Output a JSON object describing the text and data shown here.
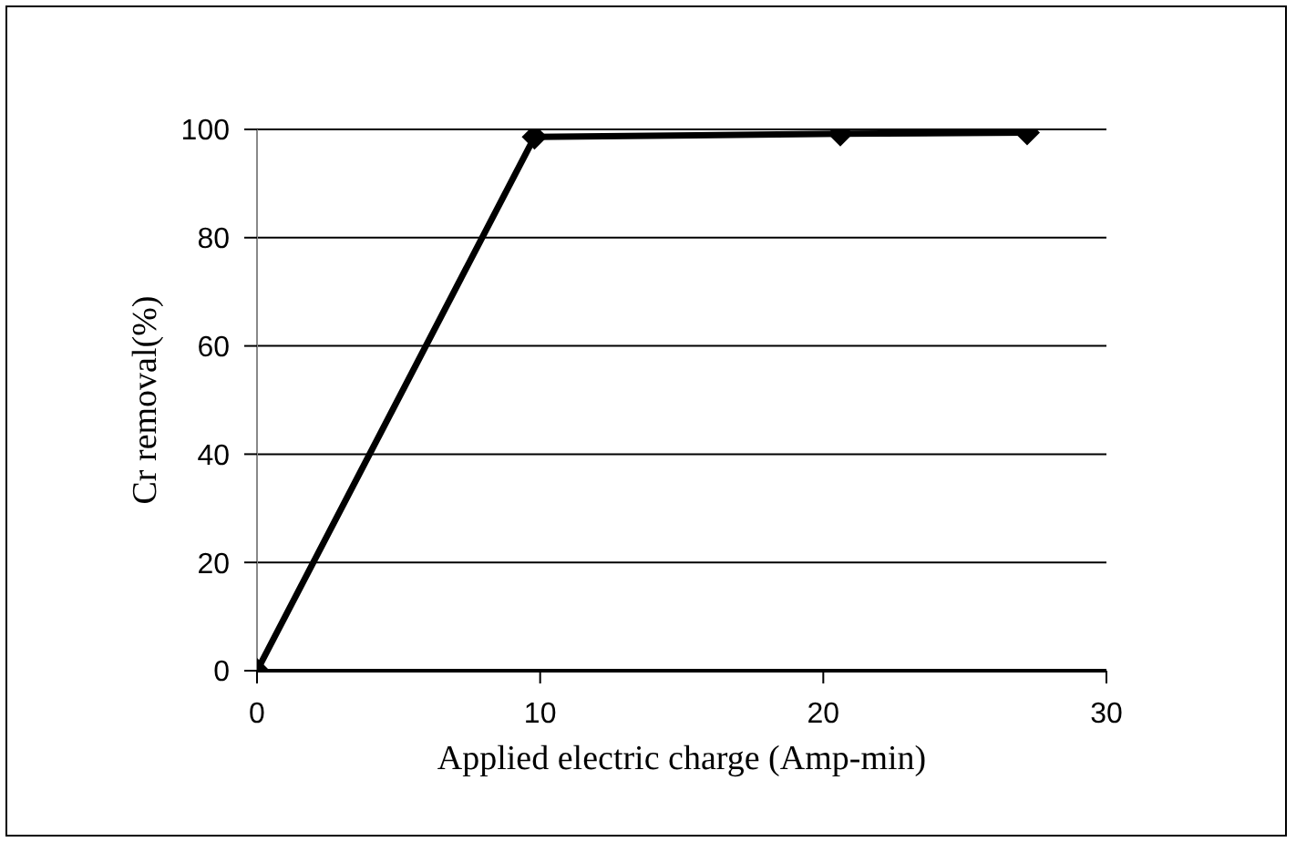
{
  "chart_data": {
    "type": "line",
    "xlabel": "Applied electric charge (Amp-min)",
    "ylabel": "Cr removal(%)",
    "x": [
      0,
      9.8,
      20.6,
      27.2
    ],
    "series": [
      {
        "color": "#000000",
        "values": [
          0,
          98.6,
          99.2,
          99.4
        ]
      }
    ],
    "xlim": [
      0,
      30
    ],
    "xticks": [
      0,
      10,
      20,
      30
    ],
    "ylim": [
      0,
      100
    ],
    "yticks": [
      0,
      20,
      40,
      60,
      80,
      100
    ],
    "grid": "y",
    "marker": "diamond",
    "line_style": "solid",
    "legend": false
  }
}
